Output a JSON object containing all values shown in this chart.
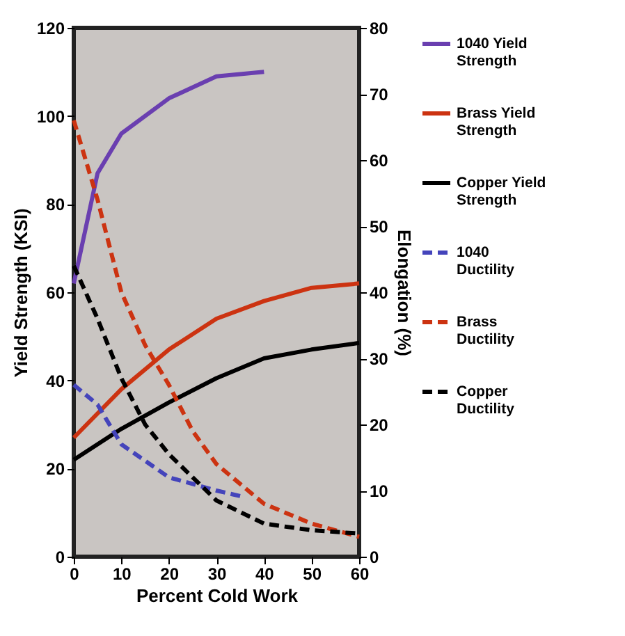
{
  "chart_data": {
    "type": "line",
    "xlabel": "Percent Cold Work",
    "ylabel": "Yield Strength (KSI)",
    "y2label": "Elongation (%)",
    "xlim": [
      0,
      60
    ],
    "xticks": [
      0,
      10,
      20,
      30,
      40,
      50,
      60
    ],
    "ylim": [
      0,
      120
    ],
    "yticks": [
      0,
      20,
      40,
      60,
      80,
      100,
      120
    ],
    "y2lim": [
      0,
      80
    ],
    "y2ticks": [
      0,
      10,
      20,
      30,
      40,
      50,
      60,
      70,
      80
    ],
    "grid": false,
    "legend": "right",
    "marker": "none",
    "series": [
      {
        "name": "1040 Yield Strength",
        "color": "#6a3fb0",
        "line_style": "solid",
        "x": [
          0,
          5,
          10,
          20,
          30,
          40
        ],
        "values": [
          62,
          87,
          96,
          104,
          109,
          110
        ]
      },
      {
        "name": "Brass Yield Strength",
        "color": "#cc3311",
        "line_style": "solid",
        "x": [
          0,
          10,
          20,
          30,
          40,
          50,
          60
        ],
        "values": [
          27,
          38,
          47,
          54,
          58,
          61,
          62
        ]
      },
      {
        "name": "Copper Yield Strength",
        "color": "#000000",
        "line_style": "solid",
        "x": [
          0,
          10,
          20,
          30,
          40,
          50,
          60
        ],
        "values": [
          22,
          29,
          35,
          40.5,
          45,
          47,
          48.5
        ]
      },
      {
        "name": "1040 Ductility",
        "color": "#4444bb",
        "line_style": "dashed",
        "axis": "y2",
        "x": [
          0,
          5,
          10,
          20,
          30,
          36
        ],
        "values": [
          26,
          23,
          17,
          12,
          10,
          9
        ]
      },
      {
        "name": "Brass Ductility",
        "color": "#cc3311",
        "line_style": "dashed",
        "axis": "y2",
        "x": [
          0,
          5,
          10,
          15,
          20,
          25,
          30,
          40,
          50,
          60
        ],
        "values": [
          66,
          54,
          40,
          32,
          26,
          19,
          14,
          8,
          5,
          3
        ]
      },
      {
        "name": "Copper Ductility",
        "color": "#000000",
        "line_style": "dashed",
        "axis": "y2",
        "x": [
          0,
          5,
          10,
          15,
          20,
          30,
          40,
          50,
          60
        ],
        "values": [
          44,
          36,
          27,
          20,
          15.5,
          8.5,
          5,
          4,
          3.5
        ]
      }
    ]
  }
}
